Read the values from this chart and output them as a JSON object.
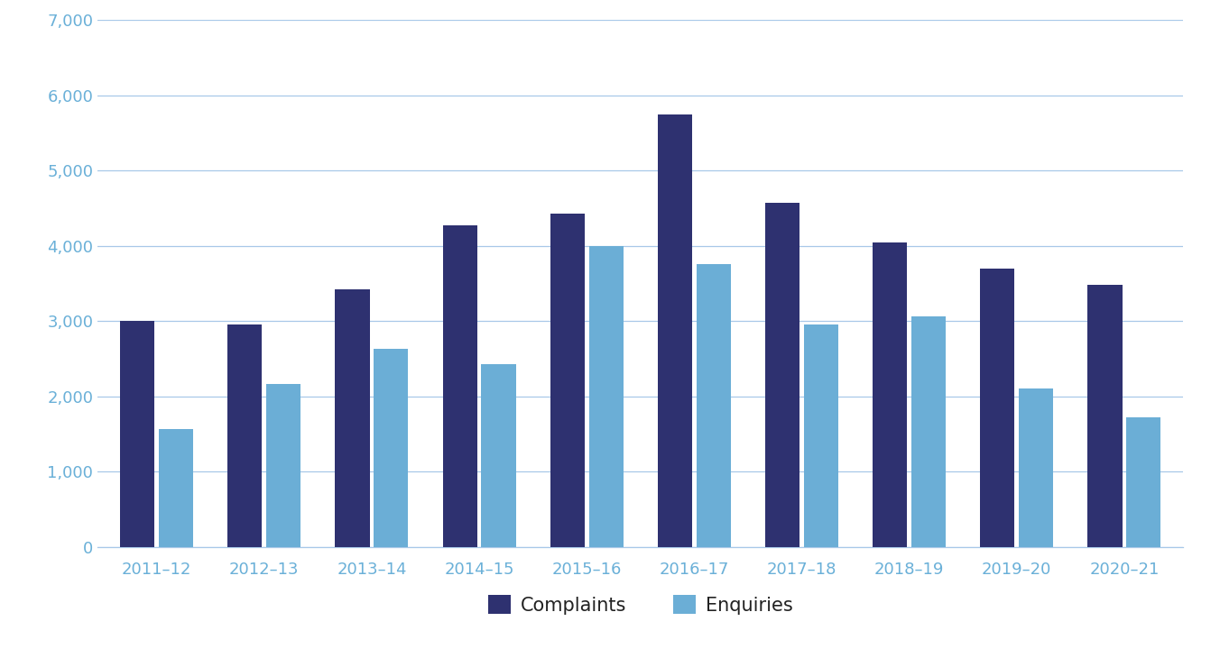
{
  "categories": [
    "2011–12",
    "2012–13",
    "2013–14",
    "2014–15",
    "2015–16",
    "2016–17",
    "2017–18",
    "2018–19",
    "2019–20",
    "2020–21"
  ],
  "complaints": [
    3000,
    2960,
    3420,
    4270,
    4430,
    5750,
    4570,
    4040,
    3700,
    3480
  ],
  "enquiries": [
    1570,
    2170,
    2630,
    2430,
    4000,
    3760,
    2960,
    3060,
    2100,
    1720
  ],
  "complaints_color": "#2e3170",
  "enquiries_color": "#6baed6",
  "background_color": "#ffffff",
  "grid_color": "#a8c8e8",
  "tick_color": "#6ab0d8",
  "legend_text_color": "#222222",
  "ylim": [
    0,
    7000
  ],
  "yticks": [
    0,
    1000,
    2000,
    3000,
    4000,
    5000,
    6000,
    7000
  ],
  "legend_labels": [
    "Complaints",
    "Enquiries"
  ],
  "bar_width": 0.32,
  "bar_gap": 0.04
}
